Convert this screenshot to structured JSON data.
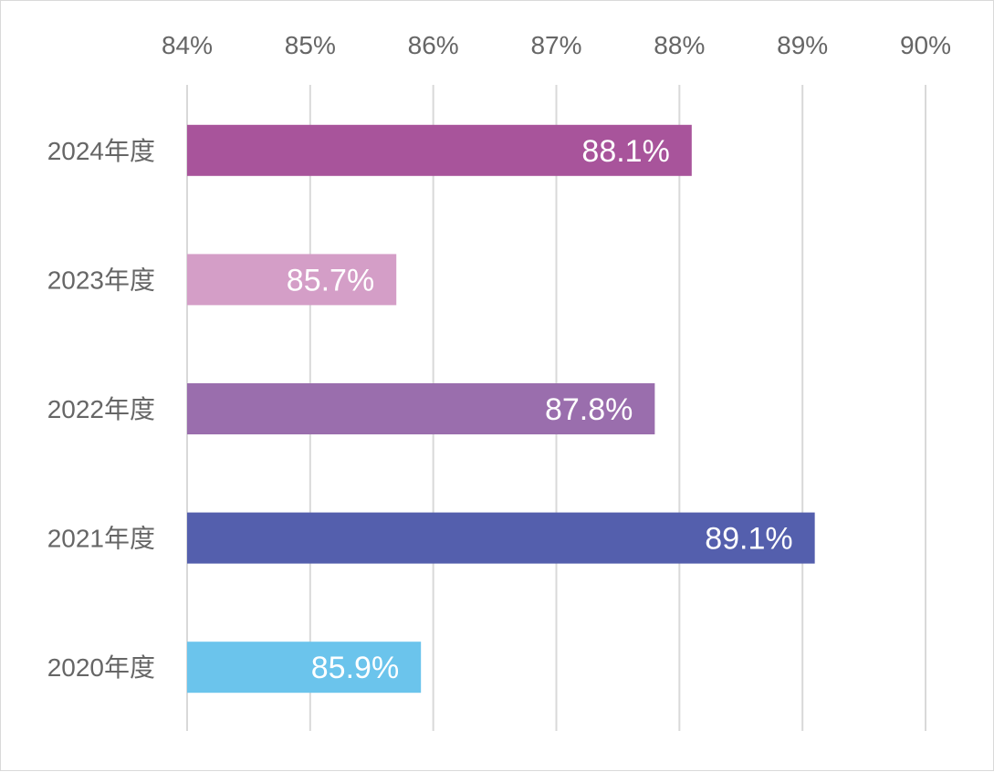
{
  "chart_data": {
    "type": "bar",
    "orientation": "horizontal",
    "categories": [
      "2024年度",
      "2023年度",
      "2022年度",
      "2021年度",
      "2020年度"
    ],
    "values": [
      88.1,
      85.7,
      87.8,
      89.1,
      85.9
    ],
    "data_labels": [
      "88.1%",
      "85.7%",
      "87.8%",
      "89.1%",
      "85.9%"
    ],
    "colors": [
      "#a8549b",
      "#d49ec7",
      "#9a6ead",
      "#545fad",
      "#6bc4ec"
    ],
    "xlim": [
      84,
      90
    ],
    "x_ticks": [
      84,
      85,
      86,
      87,
      88,
      89,
      90
    ],
    "x_tick_labels": [
      "84%",
      "85%",
      "86%",
      "87%",
      "88%",
      "89%",
      "90%"
    ],
    "x_axis_position": "top",
    "grid": true,
    "legend": "none",
    "title": "",
    "xlabel": "",
    "ylabel": ""
  }
}
